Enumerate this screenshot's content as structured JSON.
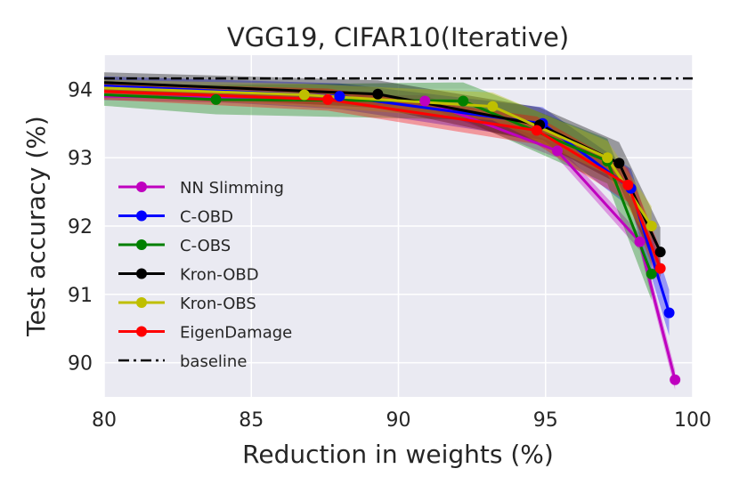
{
  "chart_data": {
    "type": "line",
    "title": "VGG19, CIFAR10(Iterative)",
    "xlabel": "Reduction in weights (%)",
    "ylabel": "Test accuracy (%)",
    "xlim": [
      80,
      100
    ],
    "ylim": [
      89.5,
      94.5
    ],
    "xticks": [
      80,
      85,
      90,
      95,
      100
    ],
    "yticks": [
      90,
      91,
      92,
      93,
      94
    ],
    "grid": true,
    "legend_position": "lower-left",
    "baseline": {
      "name": "baseline",
      "value": 94.16,
      "color": "#000000"
    },
    "series": [
      {
        "name": "NN Slimming",
        "color": "#bf00bf",
        "x": [
          78.0,
          90.9,
          95.4,
          98.2,
          99.4
        ],
        "y": [
          93.9,
          93.83,
          93.1,
          91.77,
          89.75
        ],
        "band": 0.06
      },
      {
        "name": "C-OBD",
        "color": "#0000ff",
        "x": [
          78.0,
          88.0,
          94.9,
          97.9,
          99.2
        ],
        "y": [
          94.05,
          93.9,
          93.5,
          92.55,
          90.73
        ],
        "band": 0.14
      },
      {
        "name": "C-OBS",
        "color": "#008000",
        "x": [
          78.0,
          83.8,
          92.2,
          97.1,
          98.6
        ],
        "y": [
          93.92,
          93.85,
          93.83,
          92.95,
          91.3
        ],
        "band": 0.16
      },
      {
        "name": "Kron-OBD",
        "color": "#000000",
        "x": [
          78.0,
          89.3,
          94.8,
          97.5,
          98.9
        ],
        "y": [
          94.1,
          93.93,
          93.48,
          92.92,
          91.62
        ],
        "band": 0.15
      },
      {
        "name": "Kron-OBS",
        "color": "#bfbf00",
        "x": [
          78.0,
          86.8,
          93.2,
          97.1,
          98.6
        ],
        "y": [
          94.02,
          93.92,
          93.75,
          93.0,
          92.0
        ],
        "band": 0.12
      },
      {
        "name": "EigenDamage",
        "color": "#ff0000",
        "x": [
          78.0,
          87.6,
          94.7,
          97.8,
          98.9
        ],
        "y": [
          93.97,
          93.85,
          93.4,
          92.6,
          91.38
        ],
        "band": 0.12
      }
    ]
  }
}
